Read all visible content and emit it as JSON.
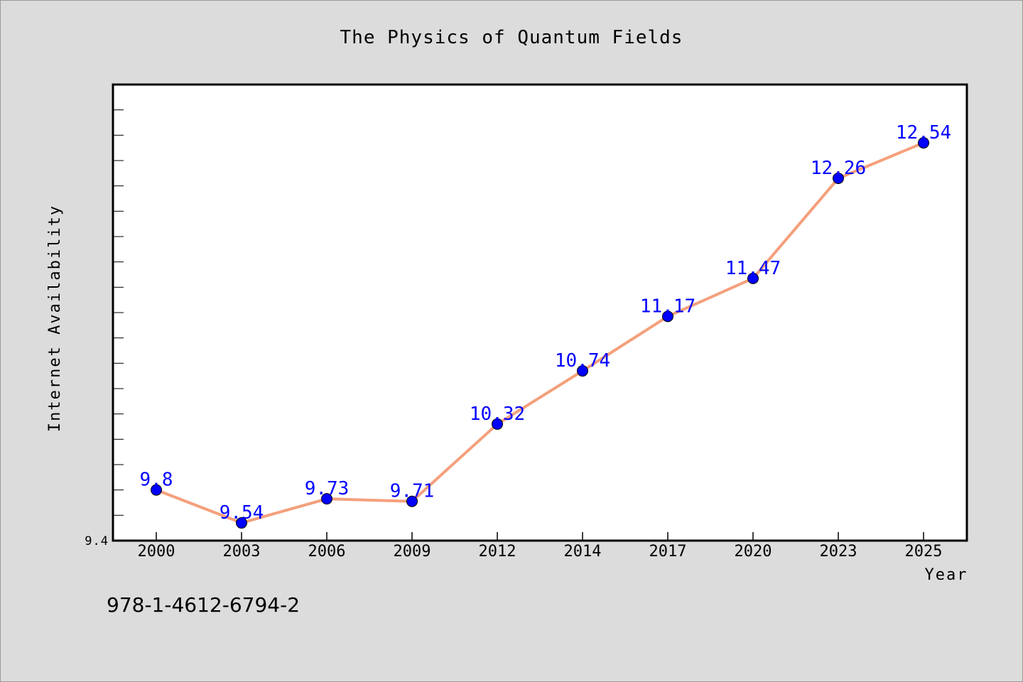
{
  "chart_data": {
    "type": "line",
    "title": "The Physics of Quantum Fields",
    "xlabel": "Year",
    "ylabel": "Internet Availability",
    "categories": [
      "2000",
      "2003",
      "2006",
      "2009",
      "2012",
      "2014",
      "2017",
      "2020",
      "2023",
      "2025"
    ],
    "series": [
      {
        "values": [
          9.8,
          9.54,
          9.73,
          9.71,
          10.32,
          10.74,
          11.17,
          11.47,
          12.26,
          12.54
        ],
        "data_labels": [
          "9.8",
          "9.54",
          "9.73",
          "9.71",
          "10.32",
          "10.74",
          "11.17",
          "11.47",
          "12.26",
          "12.54"
        ],
        "line_color": "#f4a07c",
        "marker_color": "#0000ff"
      }
    ],
    "ylim": [
      9.4,
      13.0
    ],
    "y_tick_labels": [
      "9.4"
    ],
    "grid": false,
    "legend": "none"
  },
  "footer": {
    "code": "978-1-4612-6794-2"
  },
  "colors": {
    "background": "#dcdcdc",
    "plot_background": "#ffffff",
    "label_color": "#0000ff"
  }
}
